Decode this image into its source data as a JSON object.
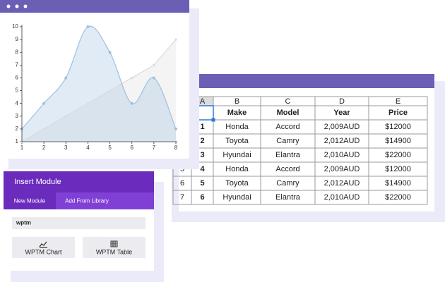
{
  "chart_data": {
    "type": "line",
    "x": [
      1,
      2,
      3,
      4,
      5,
      6,
      7,
      8
    ],
    "series": [
      {
        "color": "#dadada",
        "values": [
          1,
          2,
          3,
          4,
          5,
          6,
          7,
          9
        ]
      },
      {
        "color": "#9fc0df",
        "values": [
          2,
          4,
          6,
          10,
          8,
          4,
          6,
          2
        ],
        "smooth": true
      }
    ],
    "xlim": [
      1,
      8
    ],
    "xticks": [
      1,
      2,
      3,
      4,
      5,
      6,
      7,
      8
    ],
    "ylim": [
      1,
      10
    ],
    "yticks": [
      1,
      2,
      3,
      4,
      5,
      6,
      7,
      8,
      9,
      10
    ],
    "area": true
  },
  "spreadsheet": {
    "column_letters": [
      "A",
      "B",
      "C",
      "D",
      "E"
    ],
    "headers": [
      "Make",
      "Model",
      "Year",
      "Price"
    ],
    "rows": [
      [
        "1",
        "Honda",
        "Accord",
        "2,009AUD",
        "$12000"
      ],
      [
        "2",
        "Toyota",
        "Camry",
        "2,012AUD",
        "$14900"
      ],
      [
        "3",
        "Hyundai",
        "Elantra",
        "2,010AUD",
        "$22000"
      ],
      [
        "4",
        "Honda",
        "Accord",
        "2,009AUD",
        "$12000"
      ],
      [
        "5",
        "Toyota",
        "Camry",
        "2,012AUD",
        "$14900"
      ],
      [
        "6",
        "Hyundai",
        "Elantra",
        "2,010AUD",
        "$22000"
      ]
    ],
    "row_numbers": [
      null,
      null,
      null,
      "5",
      "6",
      "7"
    ]
  },
  "insert_module": {
    "title": "Insert Module",
    "tabs": [
      "New Module",
      "Add From Library"
    ],
    "search": "wptm",
    "buttons": [
      "WPTM Chart",
      "WPTM Table"
    ]
  }
}
